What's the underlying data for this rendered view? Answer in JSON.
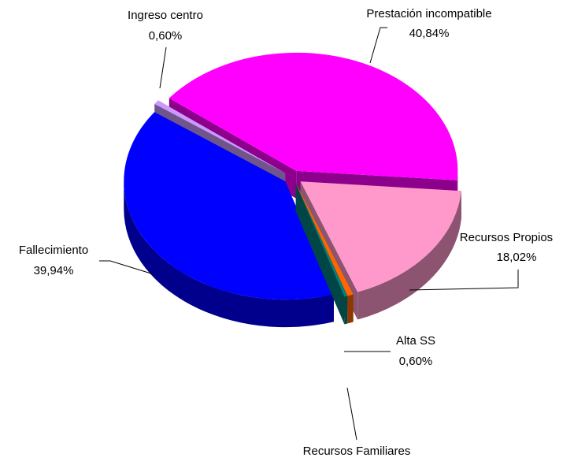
{
  "chart_data": {
    "type": "pie",
    "categories": [
      "Prestación incompatible",
      "Recursos Propios",
      "Alta SS",
      "Recursos Familiares",
      "Fallecimiento",
      "Ingreso centro"
    ],
    "values": [
      40.84,
      18.02,
      0.6,
      0.3,
      39.94,
      0.6
    ],
    "value_labels": [
      "40,84%",
      "18,02%",
      "0,60%",
      null,
      "39,94%",
      "0,60%"
    ],
    "colors": [
      "#ff00ff",
      "#ff99cc",
      "#ff6600",
      "#008080",
      "#0000ff",
      "#cc99ff"
    ]
  }
}
